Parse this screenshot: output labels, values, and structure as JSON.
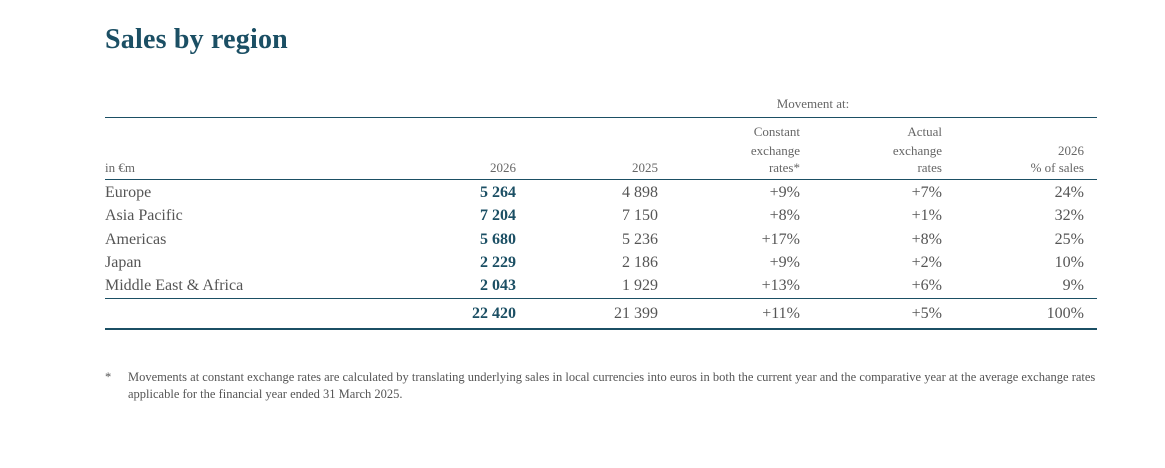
{
  "title": "Sales by region",
  "movement_label": "Movement at:",
  "header": {
    "unit": "in €m",
    "col_2026": "2026",
    "col_2025": "2025",
    "col_cer": [
      "Constant",
      "exchange",
      "rates*"
    ],
    "col_aer": [
      "Actual",
      "exchange",
      "rates"
    ],
    "col_pct": [
      "2026",
      "% of sales"
    ]
  },
  "rows": [
    {
      "region": "Europe",
      "v2026": "5 264",
      "v2025": "4 898",
      "cer": "+9%",
      "aer": "+7%",
      "pct": "24%"
    },
    {
      "region": "Asia Pacific",
      "v2026": "7 204",
      "v2025": "7 150",
      "cer": "+8%",
      "aer": "+1%",
      "pct": "32%"
    },
    {
      "region": "Americas",
      "v2026": "5 680",
      "v2025": "5 236",
      "cer": "+17%",
      "aer": "+8%",
      "pct": "25%"
    },
    {
      "region": "Japan",
      "v2026": "2 229",
      "v2025": "2 186",
      "cer": "+9%",
      "aer": "+2%",
      "pct": "10%"
    },
    {
      "region": "Middle East & Africa",
      "v2026": "2 043",
      "v2025": "1 929",
      "cer": "+13%",
      "aer": "+6%",
      "pct": "9%"
    }
  ],
  "total": {
    "region": "",
    "v2026": "22 420",
    "v2025": "21 399",
    "cer": "+11%",
    "aer": "+5%",
    "pct": "100%"
  },
  "footnote": {
    "mark": "*",
    "text": "Movements at constant exchange rates are calculated by translating underlying sales in local currencies into euros in both the current year and the comparative year at the average exchange rates applicable for the financial year ended 31 March 2025."
  },
  "colors": {
    "accent": "#1b4f64",
    "text": "#555555"
  }
}
